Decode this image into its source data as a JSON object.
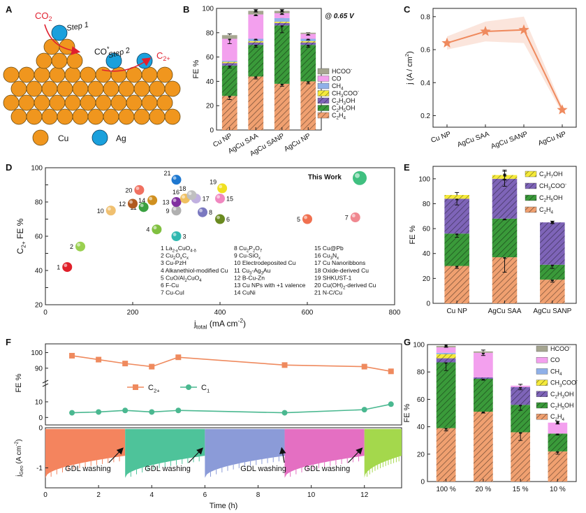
{
  "panel_letters": [
    "A",
    "B",
    "C",
    "D",
    "E",
    "F",
    "G"
  ],
  "panelA": {
    "co2": "CO",
    "co2_sub": "2",
    "step1": "Step 1",
    "co": "CO",
    "co_sup": "*",
    "step2": "Step 2",
    "c2": "C",
    "c2_sub": "2+",
    "legend_cu": "Cu",
    "legend_ag": "Ag",
    "colors": {
      "cu": "#f0961e",
      "ag": "#1aa0dc",
      "arrow": "#e0202f"
    }
  },
  "chart_data": [
    {
      "panel": "B",
      "type": "bar",
      "stacked": true,
      "ylabel": "FE %",
      "ylim": [
        0,
        100
      ],
      "yticks": [
        0,
        20,
        40,
        60,
        80,
        100
      ],
      "annotation": "@ 0.65 V",
      "categories": [
        "Cu NP",
        "AgCu SAA",
        "AgCu SANP",
        "AgCu NP"
      ],
      "series": [
        {
          "name": "C2H4",
          "color": "#f0a070",
          "pattern": "hatch",
          "values": [
            28,
            44,
            38,
            40
          ],
          "errors": [
            3,
            2,
            2,
            2
          ]
        },
        {
          "name": "C2H5OH",
          "color": "#3a9a3a",
          "pattern": "hatch",
          "values": [
            25,
            26,
            48,
            30
          ],
          "errors": [
            2,
            2,
            6,
            2
          ]
        },
        {
          "name": "C2H3OH",
          "color": "#7e64b8",
          "pattern": "hatch",
          "values": [
            2,
            2,
            2,
            2
          ],
          "errors": [
            0,
            0,
            0,
            0
          ]
        },
        {
          "name": "CH3COO-",
          "color": "#f5ea3a",
          "pattern": "hatch",
          "values": [
            1,
            1,
            1,
            1
          ],
          "errors": [
            0,
            0,
            0,
            0
          ]
        },
        {
          "name": "CH4",
          "color": "#8fb0e8",
          "pattern": "solid",
          "values": [
            1,
            2,
            3,
            2
          ],
          "errors": [
            0,
            1,
            0,
            1
          ]
        },
        {
          "name": "CO",
          "color": "#f3a0ee",
          "pattern": "solid",
          "values": [
            18,
            20,
            4,
            4
          ],
          "errors": [
            4,
            1,
            1,
            1
          ]
        },
        {
          "name": "HCOO-",
          "color": "#a5a590",
          "pattern": "solid",
          "values": [
            3,
            3,
            2,
            1
          ],
          "errors": [
            0,
            1,
            1,
            0
          ]
        }
      ],
      "legend": [
        {
          "label": "HCOO",
          "sup": "-"
        },
        {
          "label": "CO",
          "sup": ""
        },
        {
          "label": "CH",
          "sub": "4"
        },
        {
          "label": "CH",
          "sub": "3",
          "label2": "COO",
          "sup": "-"
        },
        {
          "label": "C",
          "sub": "2",
          "label2": "H",
          "sub2": "3",
          "label3": "OH"
        },
        {
          "label": "C",
          "sub": "2",
          "label2": "H",
          "sub2": "5",
          "label3": "OH"
        },
        {
          "label": "C",
          "sub": "2",
          "label2": "H",
          "sub2": "4"
        }
      ]
    },
    {
      "panel": "C",
      "type": "line",
      "ylabel": "j (A / cm",
      "ylabel_sup": "2",
      "ylabel_end": ")",
      "ylim": [
        0.13,
        0.85
      ],
      "yticks": [
        0.2,
        0.4,
        0.6,
        0.8
      ],
      "categories": [
        "Cu NP",
        "AgCu SAA",
        "AgCu SANP",
        "AgCu NP"
      ],
      "values": [
        0.64,
        0.71,
        0.72,
        0.235
      ],
      "band": [
        0.04,
        0.06,
        0.08,
        0.02
      ],
      "color": "#ef8a5e"
    },
    {
      "panel": "D",
      "type": "scatter",
      "xlabel": "j",
      "xlabel_sub": "total",
      "xlabel_unit": "(mA cm",
      "xlabel_sup": "-2",
      "xlabel_end": ")",
      "ylabel": "C",
      "ylabel_sub": "2+",
      "ylabel_end": " FE %",
      "xlim": [
        0,
        800
      ],
      "ylim": [
        20,
        100
      ],
      "xticks": [
        0,
        200,
        400,
        600,
        800
      ],
      "yticks": [
        20,
        30,
        40,
        50,
        60,
        70,
        80,
        90,
        100
      ],
      "this_work_label": "This Work",
      "points": [
        {
          "id": "1",
          "x": 50,
          "y": 42,
          "color": "#e0202a"
        },
        {
          "id": "2",
          "x": 80,
          "y": 54,
          "color": "#9ad050"
        },
        {
          "id": "3",
          "x": 300,
          "y": 60,
          "color": "#30b8b0"
        },
        {
          "id": "4",
          "x": 255,
          "y": 64,
          "color": "#80c040"
        },
        {
          "id": "5",
          "x": 600,
          "y": 70,
          "color": "#f07050"
        },
        {
          "id": "6",
          "x": 400,
          "y": 70,
          "color": "#6a8a20"
        },
        {
          "id": "7",
          "x": 710,
          "y": 71,
          "color": "#f08890"
        },
        {
          "id": "8",
          "x": 360,
          "y": 74,
          "color": "#7a78c0"
        },
        {
          "id": "9",
          "x": 300,
          "y": 75,
          "color": "#b0b0b0"
        },
        {
          "id": "10",
          "x": 150,
          "y": 75,
          "color": "#f0c070"
        },
        {
          "id": "11",
          "x": 225,
          "y": 77,
          "color": "#3aa040"
        },
        {
          "id": "12",
          "x": 200,
          "y": 79,
          "color": "#b05a20"
        },
        {
          "id": "13",
          "x": 300,
          "y": 80,
          "color": "#8030a0"
        },
        {
          "id": "14",
          "x": 245,
          "y": 81,
          "color": "#d09020"
        },
        {
          "id": "15",
          "x": 400,
          "y": 82,
          "color": "#f088c0"
        },
        {
          "id": "16",
          "x": 320,
          "y": 82,
          "color": "#f0c060"
        },
        {
          "id": "17",
          "x": 345,
          "y": 82,
          "color": "#c0b0e0"
        },
        {
          "id": "18",
          "x": 335,
          "y": 84,
          "color": "#c0c0c0"
        },
        {
          "id": "19",
          "x": 405,
          "y": 88,
          "color": "#f0e020"
        },
        {
          "id": "20",
          "x": 215,
          "y": 87,
          "color": "#f07060"
        },
        {
          "id": "21",
          "x": 300,
          "y": 93,
          "color": "#1e78d0"
        },
        {
          "id": "This Work",
          "x": 720,
          "y": 94,
          "color": "#40c080"
        }
      ],
      "references": [
        {
          "num": "1",
          "parts": [
            [
              "La",
              ""
            ],
            [
              "2-x",
              "sub"
            ],
            [
              "CuO",
              ""
            ],
            [
              "4-δ",
              "sub"
            ]
          ]
        },
        {
          "num": "2",
          "parts": [
            [
              "Cu",
              ""
            ],
            [
              "2",
              "sub"
            ],
            [
              "O",
              ""
            ],
            [
              "x",
              "sub"
            ],
            [
              "C",
              ""
            ],
            [
              "x",
              "sub"
            ]
          ]
        },
        {
          "num": "3",
          "parts": [
            [
              "Cu-PzH",
              ""
            ]
          ]
        },
        {
          "num": "4",
          "parts": [
            [
              "Alkanethiol-modified Cu",
              ""
            ]
          ]
        },
        {
          "num": "5",
          "parts": [
            [
              "CuO/Al",
              ""
            ],
            [
              "2",
              "sub"
            ],
            [
              "CuO",
              ""
            ],
            [
              "4",
              "sub"
            ]
          ]
        },
        {
          "num": "6",
          "parts": [
            [
              "F-Cu",
              ""
            ]
          ]
        },
        {
          "num": "7",
          "parts": [
            [
              "Cu-CuI",
              ""
            ]
          ]
        },
        {
          "num": "8",
          "parts": [
            [
              "Cu",
              ""
            ],
            [
              "2",
              "sub"
            ],
            [
              "P",
              ""
            ],
            [
              "2",
              "sub"
            ],
            [
              "O",
              ""
            ],
            [
              "7",
              "sub"
            ]
          ]
        },
        {
          "num": "9",
          "parts": [
            [
              "Cu-SiO",
              ""
            ],
            [
              "x",
              "sub"
            ]
          ]
        },
        {
          "num": "10",
          "parts": [
            [
              "Electrodeposited Cu",
              ""
            ]
          ]
        },
        {
          "num": "11",
          "parts": [
            [
              "Cu",
              ""
            ],
            [
              "3",
              "sub"
            ],
            [
              "-Ag",
              ""
            ],
            [
              "3",
              "sub"
            ],
            [
              "Au",
              ""
            ]
          ]
        },
        {
          "num": "12",
          "parts": [
            [
              "B-Cu-Zn",
              ""
            ]
          ]
        },
        {
          "num": "13",
          "parts": [
            [
              "Cu NPs with +1 valence",
              ""
            ]
          ]
        },
        {
          "num": "14",
          "parts": [
            [
              "CuNi",
              ""
            ]
          ]
        },
        {
          "num": "15",
          "parts": [
            [
              "Cu@Pb",
              ""
            ]
          ]
        },
        {
          "num": "16",
          "parts": [
            [
              "Cu",
              ""
            ],
            [
              "3",
              "sub"
            ],
            [
              "N",
              ""
            ],
            [
              "x",
              "sub"
            ]
          ]
        },
        {
          "num": "17",
          "parts": [
            [
              "Cu Nanoribbons",
              ""
            ]
          ]
        },
        {
          "num": "18",
          "parts": [
            [
              "Oxide-derived Cu",
              ""
            ]
          ]
        },
        {
          "num": "19",
          "parts": [
            [
              "SHKUST-1",
              ""
            ]
          ]
        },
        {
          "num": "20",
          "parts": [
            [
              "Cu(OH)",
              ""
            ],
            [
              "2",
              "sub"
            ],
            [
              "-derived Cu",
              ""
            ]
          ]
        },
        {
          "num": "21",
          "parts": [
            [
              "N-C/Cu",
              ""
            ]
          ]
        }
      ]
    },
    {
      "panel": "E",
      "type": "bar",
      "stacked": true,
      "ylabel": "FE %",
      "ylim": [
        0,
        110
      ],
      "yticks": [
        0,
        20,
        40,
        60,
        80,
        100
      ],
      "categories": [
        "Cu NP",
        "AgCu SAA",
        "AgCu SANP"
      ],
      "series": [
        {
          "name": "C2H4",
          "color": "#f0a070",
          "pattern": "hatch",
          "values": [
            30,
            37,
            19
          ],
          "errors": [
            2,
            12,
            2
          ]
        },
        {
          "name": "C2H5OH",
          "color": "#3a9a3a",
          "pattern": "hatch",
          "values": [
            26,
            31,
            12
          ],
          "errors": [
            3,
            1,
            3
          ]
        },
        {
          "name": "CH3COO-",
          "color": "#7e64b8",
          "pattern": "hatch",
          "values": [
            28,
            32,
            34
          ],
          "errors": [
            5,
            6,
            1
          ]
        },
        {
          "name": "C3H7OH",
          "color": "#f5ea3a",
          "pattern": "hatch",
          "values": [
            3,
            3,
            0
          ],
          "errors": [
            0,
            4,
            0
          ]
        }
      ],
      "legend": [
        {
          "label": "C",
          "sub": "3",
          "label2": "H",
          "sub2": "7",
          "label3": "OH"
        },
        {
          "label": "CH",
          "sub": "3",
          "label2": "COO",
          "sup": "-"
        },
        {
          "label": "C",
          "sub": "2",
          "label2": "H",
          "sub2": "5",
          "label3": "OH"
        },
        {
          "label": "C",
          "sub": "2",
          "label2": "H",
          "sub2": "4"
        }
      ]
    },
    {
      "panel": "F",
      "type": "line",
      "xlabel": "Time (h)",
      "xlim": [
        0,
        13.4
      ],
      "xticks": [
        0,
        2,
        4,
        6,
        8,
        10,
        12
      ],
      "fe_ylabel": "FE %",
      "fe_upper_yticks": [
        90,
        100
      ],
      "fe_lower_yticks": [
        0,
        10
      ],
      "series": [
        {
          "name": "C2+",
          "legend_label": "C",
          "legend_sub": "2+",
          "color": "#ef8a5e",
          "marker": "square",
          "x": [
            1,
            2,
            3,
            4,
            5,
            9,
            12,
            13
          ],
          "y": [
            98,
            95.5,
            93,
            91,
            97,
            92,
            91,
            88
          ]
        },
        {
          "name": "C1",
          "legend_label": "C",
          "legend_sub": "1",
          "color": "#4ab890",
          "marker": "circle",
          "x": [
            1,
            2,
            3,
            4,
            5,
            9,
            12,
            13
          ],
          "y": [
            3,
            3.5,
            4.5,
            3.5,
            4.5,
            3,
            5,
            8.5
          ]
        }
      ],
      "current": {
        "ylabel": "j",
        "ylabel_sub": "Geo",
        "ylabel_unit": "(A cm",
        "ylabel_sup": "-2",
        "ylabel_end": ")",
        "ylim": [
          -1.5,
          0
        ],
        "yticks": [
          -1,
          0
        ],
        "segments": [
          {
            "x0": 0,
            "x1": 3,
            "color": "#f4845e"
          },
          {
            "x0": 3,
            "x1": 6,
            "color": "#4ec39a"
          },
          {
            "x0": 6,
            "x1": 9,
            "color": "#8b9bd8"
          },
          {
            "x0": 9,
            "x1": 12,
            "color": "#e46fc2"
          },
          {
            "x0": 12,
            "x1": 13.4,
            "color": "#a4d84c"
          }
        ],
        "annotations": [
          {
            "text": "GDL washing",
            "x": 1.6,
            "arrow_to": 3
          },
          {
            "text": "GDL washing",
            "x": 4.6,
            "arrow_to": 6
          },
          {
            "text": "GDL washing",
            "x": 8.2,
            "arrow_to": 9
          },
          {
            "text": "GDL washing",
            "x": 10.6,
            "arrow_to": 12
          }
        ]
      }
    },
    {
      "panel": "G",
      "type": "bar",
      "stacked": true,
      "ylabel": "FE %",
      "ylim": [
        0,
        100
      ],
      "yticks": [
        0,
        20,
        40,
        60,
        80,
        100
      ],
      "categories": [
        "100 %",
        "20 %",
        "15 %",
        "10 %"
      ],
      "series": [
        {
          "name": "C2H4",
          "color": "#f0a070",
          "pattern": "hatch",
          "values": [
            39,
            51,
            36,
            22
          ],
          "errors": [
            2,
            1,
            6,
            2
          ]
        },
        {
          "name": "C2H5OH",
          "color": "#3a9a3a",
          "pattern": "hatch",
          "values": [
            48,
            24,
            20,
            13
          ],
          "errors": [
            6,
            1,
            4,
            1
          ]
        },
        {
          "name": "C2H3OH",
          "color": "#7e64b8",
          "pattern": "hatch",
          "values": [
            3,
            1,
            13,
            0
          ],
          "errors": [
            0,
            0,
            2,
            0
          ]
        },
        {
          "name": "CH3COO-",
          "color": "#f5ea3a",
          "pattern": "hatch",
          "values": [
            3,
            0,
            0,
            0
          ],
          "errors": [
            0,
            0,
            0,
            0
          ]
        },
        {
          "name": "CH4",
          "color": "#8fb0e8",
          "pattern": "solid",
          "values": [
            1,
            0,
            0,
            0
          ],
          "errors": [
            0,
            0,
            0,
            0
          ]
        },
        {
          "name": "CO",
          "color": "#f3a0ee",
          "pattern": "solid",
          "values": [
            4,
            18,
            1,
            8
          ],
          "errors": [
            0,
            2,
            0,
            1
          ]
        },
        {
          "name": "HCOO-",
          "color": "#a5a590",
          "pattern": "solid",
          "values": [
            1,
            1,
            0,
            0
          ],
          "errors": [
            1,
            0,
            0,
            0
          ]
        }
      ],
      "legend": [
        {
          "label": "HCOO",
          "sup": "-"
        },
        {
          "label": "CO",
          "sup": ""
        },
        {
          "label": "CH",
          "sub": "4"
        },
        {
          "label": "CH",
          "sub": "3",
          "label2": "COO",
          "sup": "-"
        },
        {
          "label": "C",
          "sub": "2",
          "label2": "H",
          "sub2": "3",
          "label3": "OH"
        },
        {
          "label": "C",
          "sub": "2",
          "label2": "H",
          "sub2": "5",
          "label3": "OH"
        },
        {
          "label": "C",
          "sub": "2",
          "label2": "H",
          "sub2": "4"
        }
      ]
    }
  ]
}
